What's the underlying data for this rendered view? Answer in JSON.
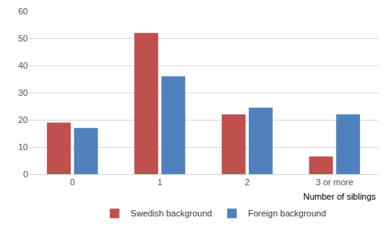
{
  "chart_data": {
    "type": "bar",
    "x_label": "Number of siblings",
    "categories": [
      "0",
      "1",
      "2",
      "3 or more"
    ],
    "series": [
      {
        "name": "Swedish background",
        "color": "#c0504d",
        "values": [
          19,
          52,
          22,
          6.5
        ]
      },
      {
        "name": "Foreign background",
        "color": "#4f81bd",
        "values": [
          17,
          36,
          24.5,
          22
        ]
      }
    ],
    "ylim": [
      0,
      60
    ],
    "yticks": [
      0,
      10,
      20,
      30,
      40,
      50,
      60
    ],
    "grid": true,
    "legend": "bottom"
  }
}
